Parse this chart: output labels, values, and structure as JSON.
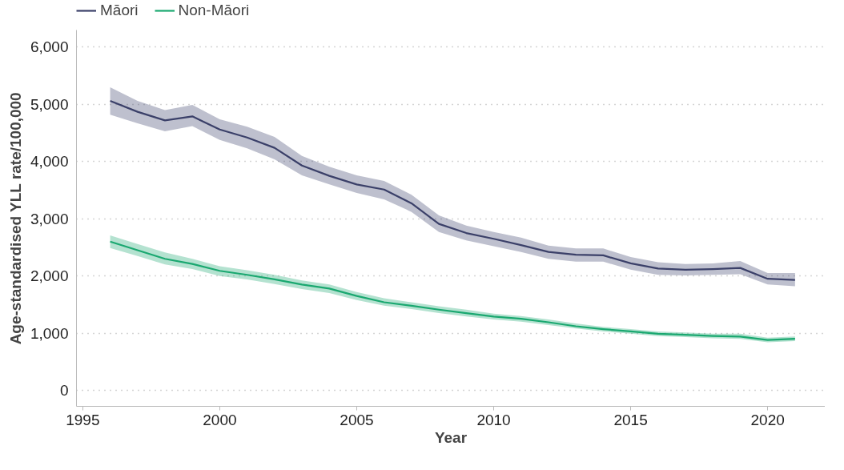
{
  "chart_data": {
    "type": "line",
    "xlabel": "Year",
    "ylabel": "Age-standardised YLL rate/100,000",
    "x": [
      1996,
      1997,
      1998,
      1999,
      2000,
      2001,
      2002,
      2003,
      2004,
      2005,
      2006,
      2007,
      2008,
      2009,
      2010,
      2011,
      2012,
      2013,
      2014,
      2015,
      2016,
      2017,
      2018,
      2019,
      2020,
      2021
    ],
    "series": [
      {
        "name": "Māori",
        "color": "#3b4069",
        "values": [
          5060,
          4870,
          4720,
          4790,
          4560,
          4420,
          4240,
          3930,
          3750,
          3600,
          3510,
          3270,
          2910,
          2750,
          2650,
          2540,
          2420,
          2370,
          2360,
          2220,
          2130,
          2110,
          2120,
          2140,
          1950,
          1930
        ],
        "lower": [
          4820,
          4670,
          4530,
          4620,
          4380,
          4230,
          4040,
          3760,
          3600,
          3450,
          3340,
          3120,
          2770,
          2620,
          2520,
          2420,
          2300,
          2250,
          2250,
          2110,
          2020,
          2010,
          2020,
          2030,
          1850,
          1820
        ],
        "upper": [
          5300,
          5060,
          4900,
          4990,
          4740,
          4610,
          4430,
          4100,
          3910,
          3760,
          3660,
          3420,
          3060,
          2880,
          2770,
          2670,
          2530,
          2480,
          2480,
          2330,
          2240,
          2210,
          2220,
          2260,
          2050,
          2050
        ]
      },
      {
        "name": "Non-Māori",
        "color": "#1aa870",
        "values": [
          2600,
          2450,
          2300,
          2210,
          2090,
          2020,
          1940,
          1850,
          1780,
          1650,
          1540,
          1480,
          1410,
          1350,
          1290,
          1250,
          1190,
          1120,
          1070,
          1030,
          990,
          970,
          950,
          940,
          880,
          900
        ],
        "lower": [
          2490,
          2350,
          2200,
          2120,
          2000,
          1940,
          1860,
          1770,
          1700,
          1580,
          1480,
          1420,
          1350,
          1290,
          1240,
          1200,
          1140,
          1080,
          1030,
          990,
          950,
          930,
          910,
          900,
          840,
          860
        ],
        "upper": [
          2710,
          2560,
          2410,
          2300,
          2170,
          2100,
          2020,
          1920,
          1850,
          1720,
          1610,
          1540,
          1470,
          1410,
          1340,
          1300,
          1240,
          1170,
          1110,
          1070,
          1030,
          1010,
          990,
          990,
          920,
          940
        ]
      }
    ],
    "xlim": [
      1994.77,
      2022.1
    ],
    "xticks": [
      1995,
      2000,
      2005,
      2010,
      2015,
      2020
    ],
    "ylim": [
      -280,
      6300
    ],
    "yticks": [
      {
        "value": 0,
        "label": "0"
      },
      {
        "value": 1000,
        "label": "1,000"
      },
      {
        "value": 2000,
        "label": "2,000"
      },
      {
        "value": 3000,
        "label": "3,000"
      },
      {
        "value": 4000,
        "label": "4,000"
      },
      {
        "value": 5000,
        "label": "5,000"
      },
      {
        "value": 6000,
        "label": "6,000"
      }
    ],
    "grid": "y",
    "legend": "top left",
    "line_style": "solid",
    "marker": "none"
  }
}
